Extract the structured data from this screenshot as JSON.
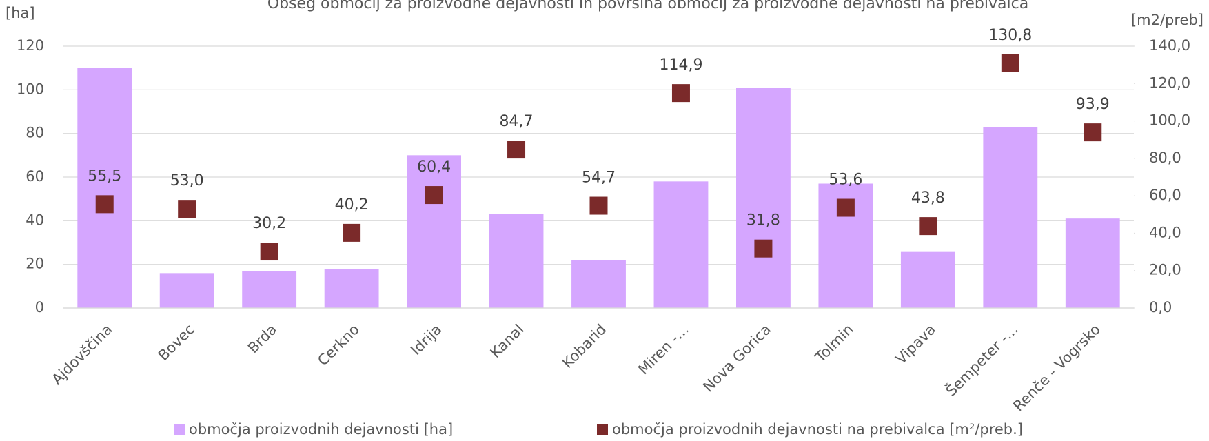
{
  "chart_data": {
    "type": "bar_scatter",
    "title": "Obseg območij za proizvodne dejavnosti in površina območij za proizvodne dejavnosti na prebivalca",
    "y_label": "[ha]",
    "y2_label": "[m2/preb]",
    "categories": [
      "Ajdovščina",
      "Bovec",
      "Brda",
      "Cerkno",
      "Idrija",
      "Kanal",
      "Kobarid",
      "Miren -...",
      "Nova Gorica",
      "Tolmin",
      "Vipava",
      "Šempeter -...",
      "Renče - Vogrsko"
    ],
    "series": [
      {
        "name": "območja proizvodnih dejavnosti [ha]",
        "type": "bar",
        "color": "#d5a6ff",
        "values": [
          110,
          16,
          17,
          18,
          70,
          43,
          22,
          58,
          101,
          57,
          26,
          83,
          41
        ]
      },
      {
        "name": "območja proizvodnih dejavnosti na prebivalca [m²/preb.]",
        "type": "scatter",
        "axis": "y2",
        "color": "#7b2a2a",
        "values": [
          55.5,
          53.0,
          30.2,
          40.2,
          60.4,
          84.7,
          54.7,
          114.9,
          31.8,
          53.6,
          43.8,
          130.8,
          93.9
        ],
        "value_labels": [
          "55,5",
          "53,0",
          "30,2",
          "40,2",
          "60,4",
          "84,7",
          "54,7",
          "114,9",
          "31,8",
          "53,6",
          "43,8",
          "130,8",
          "93,9"
        ]
      }
    ],
    "ylim": [
      0,
      120
    ],
    "yticks": [
      0,
      20,
      40,
      60,
      80,
      100,
      120
    ],
    "y2lim": [
      0,
      140
    ],
    "y2ticks": [
      {
        "value": 0,
        "label": "0,0"
      },
      {
        "value": 20,
        "label": "20,0"
      },
      {
        "value": 40,
        "label": "40,0"
      },
      {
        "value": 60,
        "label": "60,0"
      },
      {
        "value": 80,
        "label": "80,0"
      },
      {
        "value": 100,
        "label": "100,0"
      },
      {
        "value": 120,
        "label": "120,0"
      },
      {
        "value": 140,
        "label": "140,0"
      }
    ],
    "grid": true,
    "legend": "bottom"
  }
}
